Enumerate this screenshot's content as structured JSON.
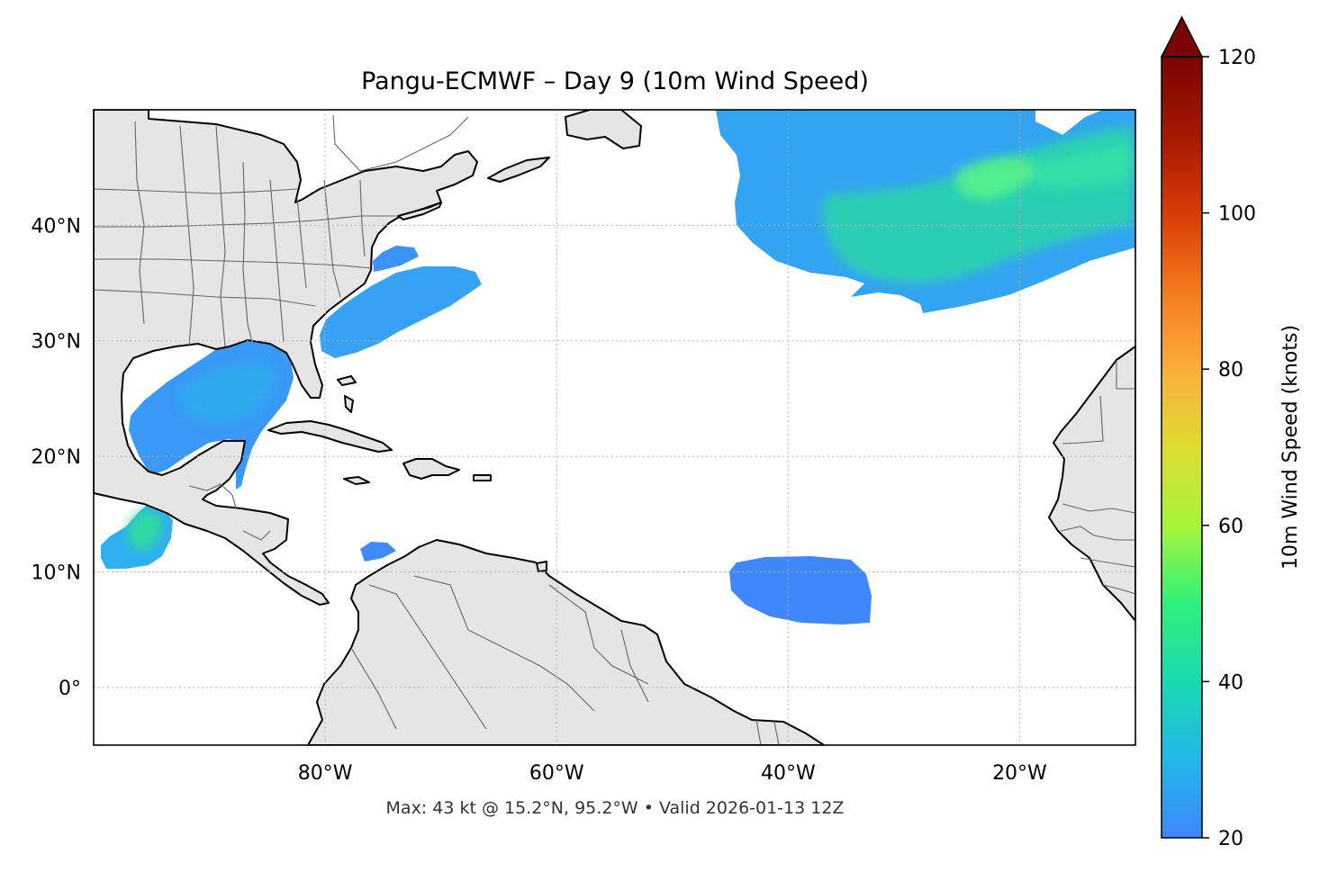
{
  "title": "Pangu-ECMWF – Day 9 (10m Wind Speed)",
  "footer": "Max: 43 kt @ 15.2°N, 95.2°W • Valid 2026-01-13 12Z",
  "map": {
    "lon_range": [
      -100,
      -10
    ],
    "lat_range": [
      -5,
      50
    ],
    "x_ticks": [
      {
        "lon": -80,
        "label": "80°W"
      },
      {
        "lon": -60,
        "label": "60°W"
      },
      {
        "lon": -40,
        "label": "40°W"
      },
      {
        "lon": -20,
        "label": "20°W"
      }
    ],
    "y_ticks": [
      {
        "lat": 40,
        "label": "40°N"
      },
      {
        "lat": 30,
        "label": "30°N"
      },
      {
        "lat": 20,
        "label": "20°N"
      },
      {
        "lat": 10,
        "label": "10°N"
      },
      {
        "lat": 0,
        "label": "0°"
      }
    ],
    "gridlines": true,
    "land_color": "#e5e5e5",
    "ocean_color": "#ffffff"
  },
  "colorbar": {
    "label": "10m Wind Speed (knots)",
    "min": 20,
    "max": 120,
    "extend": "max",
    "ticks": [
      {
        "value": 20,
        "label": "20"
      },
      {
        "value": 40,
        "label": "40"
      },
      {
        "value": 60,
        "label": "60"
      },
      {
        "value": 80,
        "label": "80"
      },
      {
        "value": 100,
        "label": "100"
      },
      {
        "value": 120,
        "label": "120"
      }
    ],
    "colors": [
      "#3f86fd",
      "#22b8e8",
      "#19d9b0",
      "#2ff07a",
      "#a6f53a",
      "#dedb32",
      "#fbae3a",
      "#f47a1c",
      "#d83c06",
      "#a51702",
      "#7a0403"
    ],
    "extend_color": "#7a0403"
  },
  "wind_regions": [
    {
      "name": "north-atlantic-jet",
      "max_kt": 42
    },
    {
      "name": "gulf-of-mexico",
      "max_kt": 28
    },
    {
      "name": "us-east-coast",
      "max_kt": 29
    },
    {
      "name": "gulf-of-tehuantepec",
      "max_kt": 43
    },
    {
      "name": "central-atlantic-tropics",
      "max_kt": 22
    }
  ]
}
